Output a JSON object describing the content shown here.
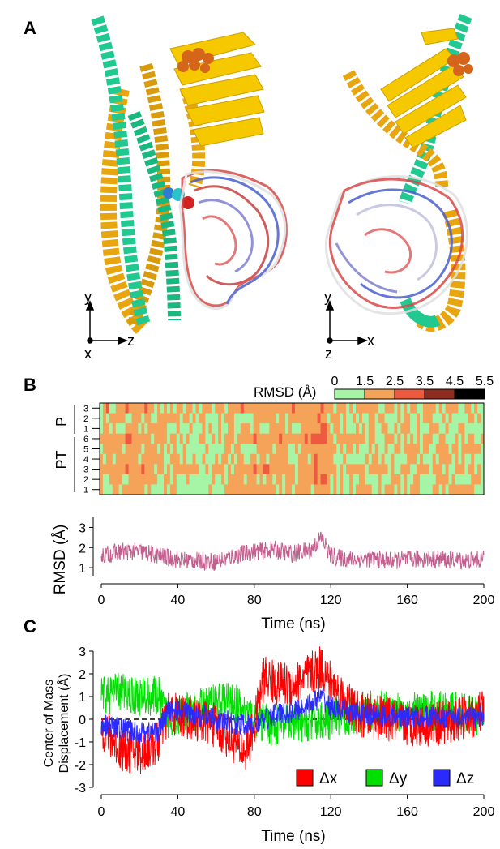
{
  "panels": {
    "a": {
      "letter": "A",
      "left_axes": {
        "y": "y",
        "x2": "z",
        "x": "x"
      },
      "right_axes": {
        "y": "y",
        "x2": "x",
        "x": "z"
      }
    },
    "b": {
      "letter": "B"
    },
    "c": {
      "letter": "C"
    }
  },
  "colors": {
    "helix_green": "#1fc98f",
    "helix_gold": "#e8a50e",
    "sheet_yellow": "#f5c800",
    "orange_spheres": "#d4651a",
    "rmsd_line": "#c25f8e",
    "dx": "#ff0000",
    "dy": "#00e000",
    "dz": "#2a2aff"
  },
  "chart_data": [
    {
      "type": "heatmap",
      "colorbar": {
        "label": "RMSD (Å)",
        "ticks": [
          "0",
          "1.5",
          "2.5",
          "3.5",
          "4.5",
          "5.5"
        ],
        "colors": [
          "#a6f5a6",
          "#f6a35a",
          "#ee5a40",
          "#8e2c20",
          "#000000"
        ]
      },
      "groups": [
        {
          "label": "P",
          "rows": [
            "3",
            "2",
            "1"
          ]
        },
        {
          "label": "PT",
          "rows": [
            "6",
            "5",
            "4",
            "3",
            "2",
            "1"
          ]
        }
      ]
    },
    {
      "type": "line",
      "ylabel": "RMSD (Å)",
      "xlabel": "Time (ns)",
      "xlim": [
        0,
        200
      ],
      "ylim": [
        0.6,
        3.3
      ],
      "xticks": [
        "0",
        "40",
        "80",
        "120",
        "160",
        "200"
      ],
      "yticks": [
        "1",
        "2",
        "3"
      ],
      "series": [
        {
          "x": [
            0,
            10,
            20,
            30,
            40,
            50,
            60,
            70,
            80,
            90,
            100,
            110,
            115,
            120,
            130,
            140,
            150,
            160,
            170,
            180,
            190,
            200
          ],
          "values": [
            1.6,
            1.8,
            1.8,
            1.6,
            1.4,
            1.35,
            1.3,
            1.6,
            1.8,
            1.9,
            1.7,
            1.9,
            2.5,
            1.6,
            1.4,
            1.45,
            1.35,
            1.4,
            1.45,
            1.4,
            1.35,
            1.4
          ]
        }
      ]
    },
    {
      "type": "line",
      "ylabel": "Center of Mass\nDisplacement (Å)",
      "xlabel": "Time (ns)",
      "xlim": [
        0,
        200
      ],
      "ylim": [
        -3,
        3
      ],
      "xticks": [
        "0",
        "40",
        "80",
        "120",
        "160",
        "200"
      ],
      "yticks": [
        "3",
        "2",
        "1",
        "0",
        "-1",
        "-2",
        "-3"
      ],
      "series": [
        {
          "name": "Δx",
          "x": [
            0,
            10,
            20,
            30,
            35,
            50,
            60,
            70,
            75,
            80,
            85,
            90,
            100,
            110,
            115,
            120,
            130,
            135,
            150,
            160,
            180,
            200
          ],
          "values": [
            -0.3,
            -1.3,
            -1.5,
            -1.0,
            0.3,
            0.0,
            -0.3,
            -1.0,
            -1.5,
            -0.3,
            1.9,
            1.6,
            1.5,
            2.0,
            2.3,
            1.6,
            0.6,
            0.2,
            0.0,
            -0.2,
            -0.2,
            0.3
          ]
        },
        {
          "name": "Δy",
          "x": [
            0,
            10,
            20,
            30,
            35,
            50,
            60,
            70,
            80,
            90,
            100,
            110,
            120,
            130,
            140,
            160,
            180,
            200
          ],
          "values": [
            1.0,
            1.2,
            1.0,
            1.0,
            0.0,
            0.4,
            0.8,
            0.7,
            0.0,
            -0.3,
            -0.2,
            -0.1,
            0.0,
            0.2,
            0.4,
            0.3,
            0.4,
            0.1
          ]
        },
        {
          "name": "Δz",
          "x": [
            0,
            10,
            20,
            30,
            35,
            50,
            60,
            70,
            80,
            90,
            100,
            110,
            115,
            120,
            130,
            140,
            160,
            180,
            200
          ],
          "values": [
            -0.2,
            -0.4,
            -0.6,
            -0.5,
            0.4,
            0.2,
            0.0,
            -0.2,
            -0.3,
            0.2,
            0.3,
            0.7,
            1.0,
            0.5,
            0.3,
            0.2,
            0.1,
            0.1,
            0.1
          ]
        }
      ]
    }
  ]
}
